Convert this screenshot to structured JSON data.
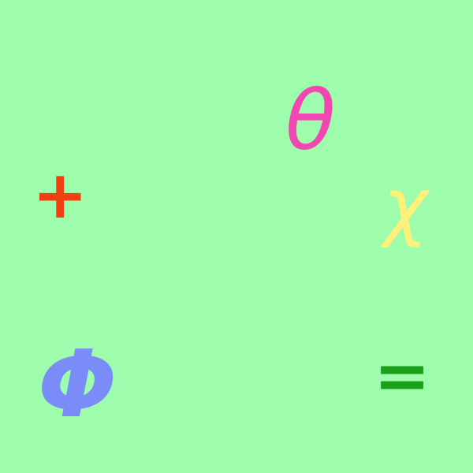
{
  "background_color": "#9dfdad",
  "symbols": {
    "theta": {
      "text": "θ",
      "color": "#f048b0"
    },
    "plus": {
      "text": "+",
      "color": "#f04010"
    },
    "chi": {
      "text": "χ",
      "color": "#fff07a"
    },
    "phi": {
      "text": "Φ",
      "color": "#7a8cf8"
    },
    "equals": {
      "text": "=",
      "color": "#1aa01a"
    }
  }
}
